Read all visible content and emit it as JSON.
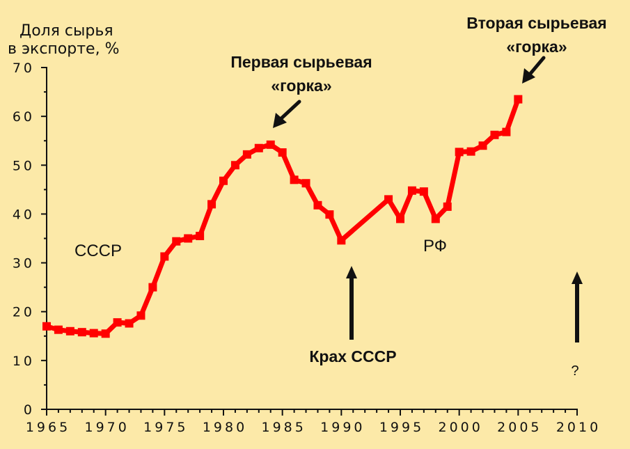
{
  "colors": {
    "background": "#fce9a8",
    "series": "#ff0000",
    "axis": "#111111"
  },
  "chart_data": {
    "type": "line",
    "ylabel_lines": [
      "Доля сырья",
      "в экспорте, %"
    ],
    "xlim": [
      1965,
      2010
    ],
    "ylim": [
      0,
      70
    ],
    "xticks": [
      "1965",
      "1970",
      "1975",
      "1980",
      "1985",
      "1990",
      "1995",
      "2000",
      "2005",
      "2010"
    ],
    "yticks": [
      "0",
      "10",
      "20",
      "30",
      "40",
      "50",
      "60",
      "70"
    ],
    "grid": false,
    "x": [
      1965,
      1966,
      1967,
      1968,
      1969,
      1970,
      1971,
      1972,
      1973,
      1974,
      1975,
      1976,
      1977,
      1978,
      1979,
      1980,
      1981,
      1982,
      1983,
      1984,
      1985,
      1986,
      1987,
      1988,
      1989,
      1990,
      1994,
      1995,
      1996,
      1997,
      1998,
      1999,
      2000,
      2001,
      2002,
      2003,
      2004,
      2005
    ],
    "y": [
      17,
      16.3,
      16,
      15.8,
      15.6,
      15.5,
      17.8,
      17.6,
      19.2,
      25,
      31.3,
      34.4,
      35,
      35.5,
      42,
      46.8,
      50,
      52.2,
      53.5,
      54.2,
      52.6,
      47,
      46.3,
      41.8,
      39.9,
      34.6,
      43,
      39,
      44.8,
      44.6,
      39,
      41.5,
      52.7,
      52.8,
      54,
      56.2,
      56.8,
      63.5
    ],
    "series_color": "#ff0000",
    "annotations": [
      {
        "id": "ussr",
        "text": "СССР"
      },
      {
        "id": "rf",
        "text": "РФ"
      },
      {
        "id": "first_hill",
        "lines": [
          "Первая сырьевая",
          "«горка»"
        ]
      },
      {
        "id": "second_hill",
        "lines": [
          "Вторая сырьевая",
          "«горка»"
        ]
      },
      {
        "id": "collapse",
        "text": "Крах СССР"
      },
      {
        "id": "question",
        "text": "?"
      }
    ]
  }
}
